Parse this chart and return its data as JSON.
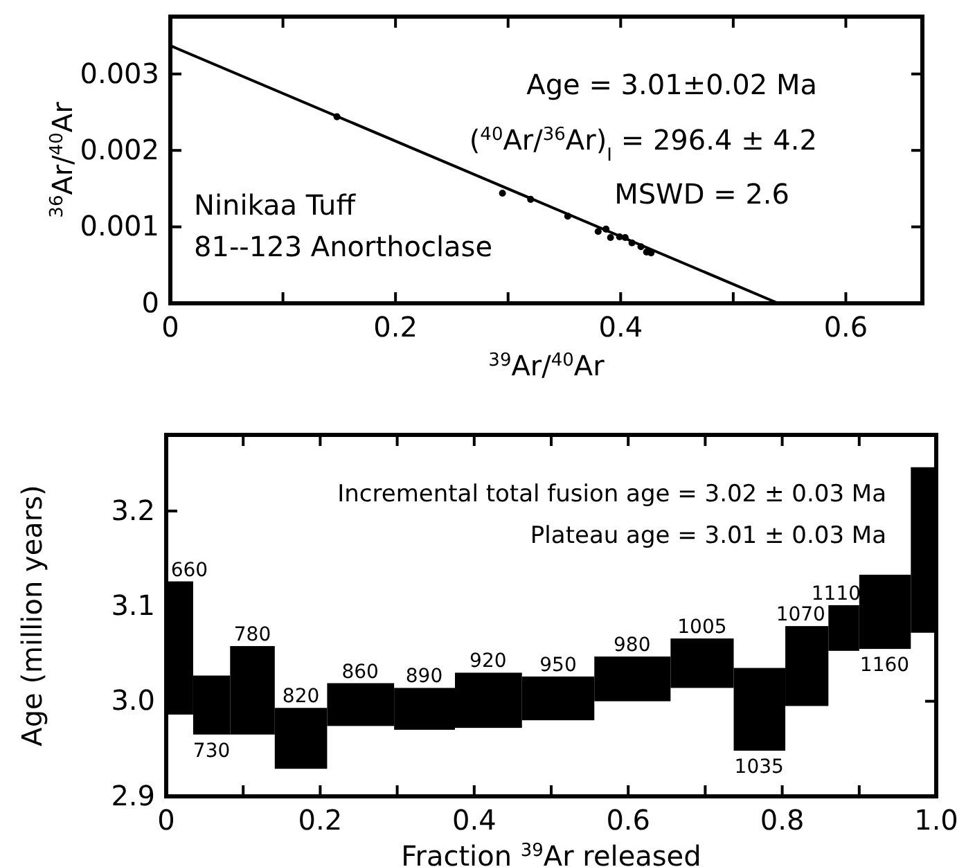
{
  "chart_data": [
    {
      "type": "scatter",
      "xlabel": "$^{39}$Ar/$^{40}$Ar",
      "ylabel": "$^{36}$Ar/$^{40}$Ar",
      "annotations": [
        "Age = 3.01±0.02 Ma",
        "($^{40}$Ar/$^{36}$Ar)$_{I}$ = 296.4 ± 4.2",
        "MSWD = 2.6",
        "Ninikaa Tuff",
        "81--123 Anorthoclase"
      ],
      "series": [
        {
          "type": "scatter",
          "color": "#000000",
          "marker": "circle",
          "x": [
            0.148,
            0.295,
            0.32,
            0.353,
            0.38,
            0.387,
            0.391,
            0.399,
            0.404,
            0.41,
            0.418,
            0.423,
            0.427
          ],
          "values": [
            0.00244,
            0.00144,
            0.00136,
            0.00114,
            0.00094,
            0.00097,
            0.00086,
            0.00087,
            0.00086,
            0.00079,
            0.00074,
            0.00067,
            0.00066
          ]
        },
        {
          "type": "line",
          "color": "#000000",
          "line_style": "solid",
          "marker": "none",
          "x": [
            0,
            0.54
          ],
          "values": [
            0.00337,
            0
          ]
        }
      ],
      "xlim": [
        0,
        0.668
      ],
      "ylim": [
        0,
        0.00375
      ],
      "xticks": [
        0,
        {
          "value": 0.1,
          "label": null
        },
        0.2,
        {
          "value": 0.3,
          "label": null
        },
        0.4,
        {
          "value": 0.5,
          "label": null
        },
        0.6
      ],
      "yticks": [
        0,
        0.001,
        0.002,
        0.003
      ],
      "grid": false
    },
    {
      "type": "histogram",
      "xlabel": "Fraction $^{39}$Ar released",
      "ylabel": "Age (million years)",
      "annotations": [
        "Incremental total fusion age = 3.02 ± 0.03 Ma",
        "Plateau age = 3.01 ± 0.03 Ma",
        {
          "text": "660",
          "x": 0.03,
          "y": 3.126
        },
        {
          "text": "730",
          "x": 0.059,
          "y": 2.965
        },
        {
          "text": "780",
          "x": 0.112,
          "y": 3.058
        },
        {
          "text": "820",
          "x": 0.175,
          "y": 2.993
        },
        {
          "text": "860",
          "x": 0.252,
          "y": 3.019
        },
        {
          "text": "890",
          "x": 0.335,
          "y": 3.014
        },
        {
          "text": "920",
          "x": 0.418,
          "y": 3.03
        },
        {
          "text": "950",
          "x": 0.509,
          "y": 3.026
        },
        {
          "text": "980",
          "x": 0.605,
          "y": 3.047
        },
        {
          "text": "1005",
          "x": 0.696,
          "y": 3.066
        },
        {
          "text": "1035",
          "x": 0.77,
          "y": 2.948
        },
        {
          "text": "1070",
          "x": 0.824,
          "y": 3.079
        },
        {
          "text": "1110",
          "x": 0.87,
          "y": 3.101
        },
        {
          "text": "1160",
          "x": 0.933,
          "y": 3.055
        }
      ],
      "bins": [
        0,
        0.035,
        0.083,
        0.141,
        0.209,
        0.296,
        0.375,
        0.462,
        0.556,
        0.655,
        0.737,
        0.804,
        0.86,
        0.9,
        0.967,
        1.0
      ],
      "base": [
        2.986,
        2.965,
        2.965,
        2.929,
        2.974,
        2.97,
        2.972,
        2.98,
        3.0,
        3.014,
        2.948,
        2.995,
        3.053,
        3.055,
        3.072
      ],
      "values": [
        0.14,
        0.062,
        0.093,
        0.064,
        0.045,
        0.044,
        0.058,
        0.046,
        0.047,
        0.052,
        0.087,
        0.084,
        0.048,
        0.078,
        0.174
      ],
      "color": "#000000",
      "xlim": [
        0,
        1.0
      ],
      "ylim": [
        2.9,
        3.28
      ],
      "xticks": [
        0,
        {
          "value": 0.1,
          "label": null
        },
        0.2,
        {
          "value": 0.3,
          "label": null
        },
        0.4,
        {
          "value": 0.5,
          "label": null
        },
        0.6,
        {
          "value": 0.7,
          "label": null
        },
        0.8,
        {
          "value": 0.9,
          "label": null
        },
        {
          "value": 1.0,
          "label": "1.0"
        }
      ],
      "yticks": [
        2.9,
        {
          "value": 3.0,
          "label": "3.0"
        },
        3.1,
        3.2
      ],
      "grid": false
    }
  ]
}
